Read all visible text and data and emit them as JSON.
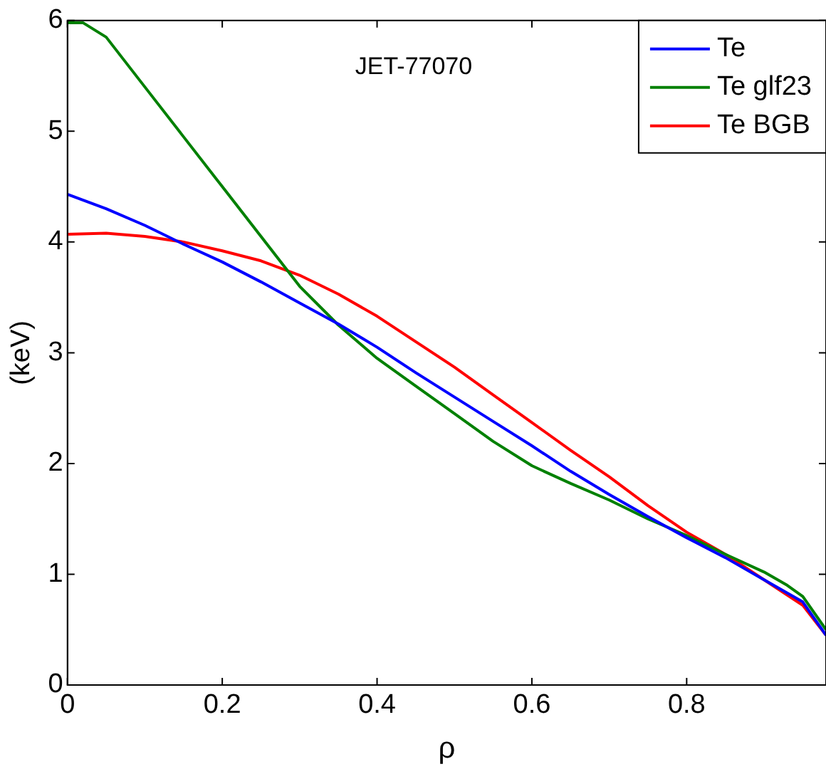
{
  "chart_data": {
    "type": "line",
    "xlabel": "ρ",
    "ylabel": "(keV)",
    "annotations": [
      "JET-77070"
    ],
    "legend": "top right",
    "grid": false,
    "line_style": "solid",
    "marker": "none",
    "xlim": [
      0,
      0.98
    ],
    "xticks": [
      0,
      0.2,
      0.4,
      0.6,
      0.8
    ],
    "ylim": [
      0,
      6
    ],
    "yticks": [
      0,
      1,
      2,
      3,
      4,
      5,
      6
    ],
    "series": [
      {
        "name": "Te",
        "color": "#0000ff",
        "x": [
          0,
          0.05,
          0.1,
          0.15,
          0.2,
          0.25,
          0.3,
          0.35,
          0.4,
          0.45,
          0.5,
          0.55,
          0.6,
          0.65,
          0.7,
          0.75,
          0.8,
          0.85,
          0.9,
          0.95,
          0.98
        ],
        "values": [
          4.43,
          4.3,
          4.15,
          3.98,
          3.82,
          3.64,
          3.45,
          3.26,
          3.05,
          2.82,
          2.6,
          2.38,
          2.16,
          1.93,
          1.72,
          1.52,
          1.33,
          1.15,
          0.95,
          0.75,
          0.45
        ]
      },
      {
        "name": "Te glf23",
        "color": "#008000",
        "x": [
          0,
          0.02,
          0.05,
          0.1,
          0.15,
          0.2,
          0.25,
          0.3,
          0.35,
          0.4,
          0.45,
          0.5,
          0.55,
          0.6,
          0.65,
          0.7,
          0.75,
          0.8,
          0.85,
          0.9,
          0.93,
          0.95,
          0.98
        ],
        "values": [
          5.98,
          5.98,
          5.85,
          5.4,
          4.95,
          4.5,
          4.05,
          3.6,
          3.25,
          2.95,
          2.7,
          2.45,
          2.2,
          1.98,
          1.82,
          1.67,
          1.5,
          1.35,
          1.18,
          1.02,
          0.9,
          0.8,
          0.5
        ]
      },
      {
        "name": "Te BGB",
        "color": "#ff0000",
        "x": [
          0,
          0.05,
          0.1,
          0.15,
          0.2,
          0.25,
          0.3,
          0.35,
          0.4,
          0.45,
          0.5,
          0.55,
          0.6,
          0.65,
          0.7,
          0.75,
          0.8,
          0.85,
          0.9,
          0.95,
          0.98
        ],
        "values": [
          4.07,
          4.08,
          4.05,
          4.0,
          3.92,
          3.83,
          3.7,
          3.53,
          3.33,
          3.1,
          2.87,
          2.62,
          2.37,
          2.12,
          1.88,
          1.62,
          1.38,
          1.18,
          0.95,
          0.72,
          0.45
        ]
      }
    ]
  }
}
